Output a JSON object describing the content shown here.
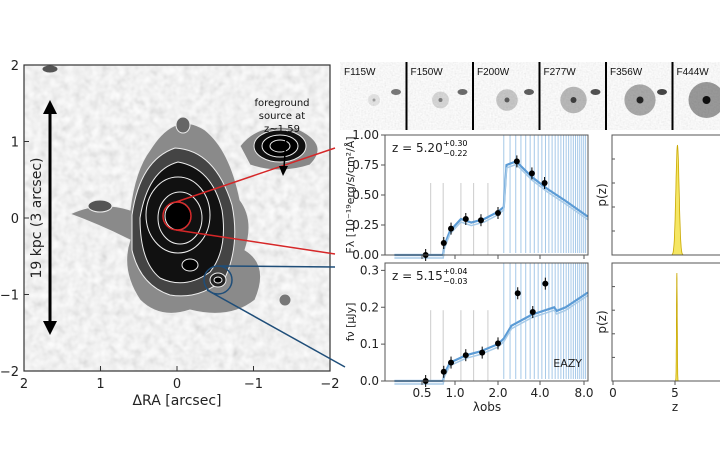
{
  "image_panel": {
    "x_ticks": [
      "2",
      "1",
      "0",
      "−1",
      "−2"
    ],
    "y_ticks": [
      "2",
      "1",
      "0",
      "−1",
      "−2"
    ],
    "xlabel": "ΔRA [arcsec]",
    "scale_bar_label": "19 kpc (3 arcsec)",
    "annotation_lines": [
      "foreground",
      "source at",
      "z~1.59"
    ],
    "colors": {
      "primary_aperture": "#d62728",
      "secondary_aperture": "#1f4e79"
    }
  },
  "stamps": [
    "F115W",
    "F150W",
    "F200W",
    "F277W",
    "F356W",
    "F444W"
  ],
  "chart_data": [
    {
      "type": "scatter",
      "ylabel": "Fλ [10⁻¹⁹erg/s/cm²/Å]",
      "annotation": "z = 5.20",
      "annotation_sup": "+0.30",
      "annotation_sub": "−0.22",
      "x_scale": "log",
      "xlim": [
        0.28,
        8.5
      ],
      "ylim": [
        0,
        1.0
      ],
      "y_ticks": [
        "0.00",
        "0.25",
        "0.50",
        "0.75",
        "1.00"
      ],
      "y_tick_values": [
        0,
        0.25,
        0.5,
        0.75,
        1.0
      ],
      "points": [
        [
          0.54,
          0.0
        ],
        [
          0.79,
          0.1
        ],
        [
          0.92,
          0.22
        ],
        [
          1.19,
          0.3
        ],
        [
          1.52,
          0.29
        ],
        [
          2.0,
          0.35
        ],
        [
          2.73,
          0.78
        ],
        [
          3.5,
          0.68
        ],
        [
          4.3,
          0.6
        ]
      ],
      "model": [
        [
          0.28,
          0
        ],
        [
          0.78,
          0
        ],
        [
          0.8,
          0.08
        ],
        [
          0.9,
          0.2
        ],
        [
          1.1,
          0.3
        ],
        [
          1.3,
          0.27
        ],
        [
          1.6,
          0.3
        ],
        [
          2.0,
          0.36
        ],
        [
          2.2,
          0.4
        ],
        [
          2.3,
          0.75
        ],
        [
          2.7,
          0.78
        ],
        [
          3.5,
          0.65
        ],
        [
          4.5,
          0.55
        ],
        [
          6,
          0.45
        ],
        [
          8.5,
          0.32
        ]
      ],
      "model_color": "#5b9bd5"
    },
    {
      "type": "scatter",
      "ylabel": "fν [μJy]",
      "xlabel": "λobs",
      "annotation": "z = 5.15",
      "annotation_sup": "+0.04",
      "annotation_sub": "−0.03",
      "legend_label": "EAZY",
      "x_scale": "log",
      "xlim": [
        0.28,
        8.5
      ],
      "x_ticks": [
        "0.5",
        "1.0",
        "2.0",
        "4.0",
        "8.0"
      ],
      "x_tick_values": [
        0.5,
        1.0,
        2.0,
        4.0,
        8.0
      ],
      "ylim": [
        0,
        0.32
      ],
      "y_ticks": [
        "0.0",
        "0.1",
        "0.2",
        "0.3"
      ],
      "y_tick_values": [
        0,
        0.1,
        0.2,
        0.3
      ],
      "points": [
        [
          0.54,
          0.0
        ],
        [
          0.79,
          0.025
        ],
        [
          0.92,
          0.05
        ],
        [
          1.19,
          0.07
        ],
        [
          1.55,
          0.077
        ],
        [
          2.0,
          0.102
        ],
        [
          2.77,
          0.238
        ],
        [
          3.55,
          0.187
        ],
        [
          4.35,
          0.264
        ]
      ],
      "model": [
        [
          0.28,
          0
        ],
        [
          0.78,
          0
        ],
        [
          0.8,
          0.02
        ],
        [
          0.9,
          0.05
        ],
        [
          1.2,
          0.07
        ],
        [
          1.5,
          0.08
        ],
        [
          2.0,
          0.1
        ],
        [
          2.2,
          0.115
        ],
        [
          2.5,
          0.15
        ],
        [
          3.5,
          0.18
        ],
        [
          5,
          0.2
        ],
        [
          5.2,
          0.19
        ],
        [
          6,
          0.2
        ],
        [
          8.5,
          0.24
        ]
      ],
      "model_color": "#5b9bd5"
    },
    {
      "type": "area",
      "ylabel": "p(z)",
      "xlim": [
        0,
        9
      ],
      "peak_z": 5.2,
      "sigma": 0.13,
      "fill_color": "#f5e663"
    },
    {
      "type": "area",
      "ylabel": "p(z)",
      "xlabel": "z",
      "x_ticks": [
        "0",
        "5"
      ],
      "x_tick_values": [
        0,
        5
      ],
      "xlim": [
        0,
        9
      ],
      "peak_z": 5.15,
      "sigma": 0.03,
      "fill_color": "#f5e663"
    }
  ]
}
